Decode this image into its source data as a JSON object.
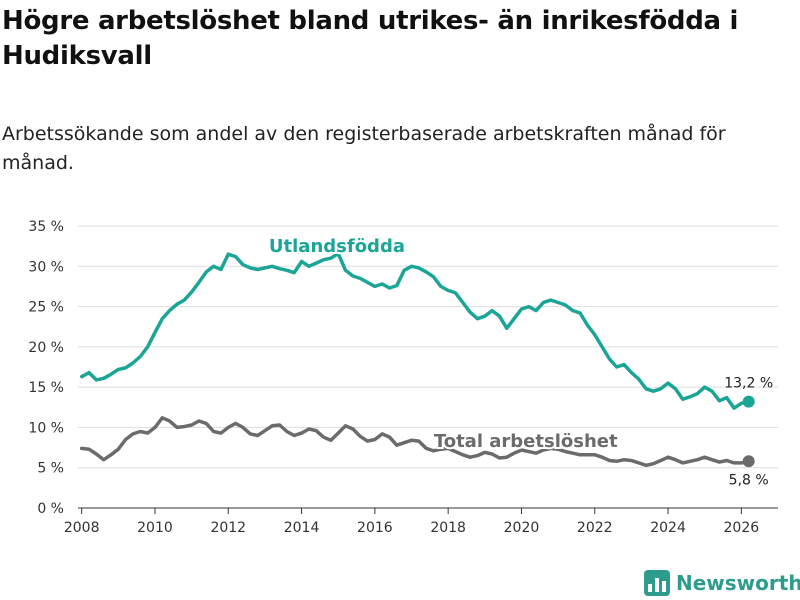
{
  "page": {
    "title": "Högre arbetslöshet bland utrikes- än inrikesfödda i Hudiksvall",
    "subtitle": "Arbetssökande som andel av den registerbaserade arbetskraften månad för månad."
  },
  "brand": {
    "name": "Newsworthy",
    "icon": "bar-chart-logo-icon",
    "color": "#2e9c8c"
  },
  "chart_data": {
    "type": "line",
    "title": "Högre arbetslöshet bland utrikes- än inrikesfödda i Hudiksvall",
    "subtitle": "Arbetssökande som andel av den registerbaserade arbetskraften månad för månad.",
    "xlabel": "",
    "ylabel": "",
    "xlim": [
      2007.9,
      2027.0
    ],
    "ylim": [
      0,
      35
    ],
    "grid": true,
    "legend": "inline labels",
    "x_ticks": [
      2008,
      2010,
      2012,
      2014,
      2016,
      2018,
      2020,
      2022,
      2024,
      2026
    ],
    "y_ticks": [
      0,
      5,
      10,
      15,
      20,
      25,
      30,
      35
    ],
    "y_tick_labels": [
      "0 %",
      "5 %",
      "10 %",
      "15 %",
      "20 %",
      "25 %",
      "30 %",
      "35 %"
    ],
    "series": [
      {
        "name": "Utlandsfödda",
        "color": "#1aa597",
        "end_label": "13,2 %",
        "points": [
          [
            2008.0,
            16.3
          ],
          [
            2008.2,
            16.8
          ],
          [
            2008.4,
            15.9
          ],
          [
            2008.6,
            16.1
          ],
          [
            2008.8,
            16.6
          ],
          [
            2009.0,
            17.2
          ],
          [
            2009.2,
            17.4
          ],
          [
            2009.4,
            18.0
          ],
          [
            2009.6,
            18.8
          ],
          [
            2009.8,
            20.0
          ],
          [
            2010.0,
            21.8
          ],
          [
            2010.2,
            23.5
          ],
          [
            2010.4,
            24.5
          ],
          [
            2010.6,
            25.3
          ],
          [
            2010.8,
            25.8
          ],
          [
            2011.0,
            26.8
          ],
          [
            2011.2,
            28.0
          ],
          [
            2011.4,
            29.3
          ],
          [
            2011.6,
            30.0
          ],
          [
            2011.8,
            29.6
          ],
          [
            2012.0,
            31.5
          ],
          [
            2012.2,
            31.2
          ],
          [
            2012.4,
            30.2
          ],
          [
            2012.6,
            29.8
          ],
          [
            2012.8,
            29.6
          ],
          [
            2013.0,
            29.8
          ],
          [
            2013.2,
            30.0
          ],
          [
            2013.4,
            29.7
          ],
          [
            2013.6,
            29.5
          ],
          [
            2013.8,
            29.2
          ],
          [
            2014.0,
            30.6
          ],
          [
            2014.2,
            30.0
          ],
          [
            2014.4,
            30.4
          ],
          [
            2014.6,
            30.8
          ],
          [
            2014.8,
            31.0
          ],
          [
            2015.0,
            31.6
          ],
          [
            2015.2,
            29.5
          ],
          [
            2015.4,
            28.8
          ],
          [
            2015.6,
            28.5
          ],
          [
            2015.8,
            28.0
          ],
          [
            2016.0,
            27.5
          ],
          [
            2016.2,
            27.8
          ],
          [
            2016.4,
            27.3
          ],
          [
            2016.6,
            27.6
          ],
          [
            2016.8,
            29.5
          ],
          [
            2017.0,
            30.0
          ],
          [
            2017.2,
            29.8
          ],
          [
            2017.4,
            29.3
          ],
          [
            2017.6,
            28.7
          ],
          [
            2017.8,
            27.5
          ],
          [
            2018.0,
            27.0
          ],
          [
            2018.2,
            26.7
          ],
          [
            2018.4,
            25.5
          ],
          [
            2018.6,
            24.3
          ],
          [
            2018.8,
            23.5
          ],
          [
            2019.0,
            23.8
          ],
          [
            2019.2,
            24.5
          ],
          [
            2019.4,
            23.8
          ],
          [
            2019.6,
            22.3
          ],
          [
            2019.8,
            23.5
          ],
          [
            2020.0,
            24.7
          ],
          [
            2020.2,
            25.0
          ],
          [
            2020.4,
            24.5
          ],
          [
            2020.6,
            25.5
          ],
          [
            2020.8,
            25.8
          ],
          [
            2021.0,
            25.5
          ],
          [
            2021.2,
            25.2
          ],
          [
            2021.4,
            24.5
          ],
          [
            2021.6,
            24.2
          ],
          [
            2021.8,
            22.7
          ],
          [
            2022.0,
            21.5
          ],
          [
            2022.2,
            20.0
          ],
          [
            2022.4,
            18.5
          ],
          [
            2022.6,
            17.5
          ],
          [
            2022.8,
            17.8
          ],
          [
            2023.0,
            16.8
          ],
          [
            2023.2,
            16.0
          ],
          [
            2023.4,
            14.8
          ],
          [
            2023.6,
            14.5
          ],
          [
            2023.8,
            14.8
          ],
          [
            2024.0,
            15.5
          ],
          [
            2024.2,
            14.8
          ],
          [
            2024.4,
            13.5
          ],
          [
            2024.6,
            13.8
          ],
          [
            2024.8,
            14.2
          ],
          [
            2025.0,
            15.0
          ],
          [
            2025.2,
            14.5
          ],
          [
            2025.4,
            13.3
          ],
          [
            2025.6,
            13.7
          ],
          [
            2025.8,
            12.4
          ],
          [
            2026.0,
            13.0
          ],
          [
            2026.2,
            13.2
          ]
        ]
      },
      {
        "name": "Total arbetslöshet",
        "color": "#6b6b6b",
        "end_label": "5,8 %",
        "points": [
          [
            2008.0,
            7.4
          ],
          [
            2008.2,
            7.3
          ],
          [
            2008.4,
            6.7
          ],
          [
            2008.6,
            6.0
          ],
          [
            2008.8,
            6.6
          ],
          [
            2009.0,
            7.3
          ],
          [
            2009.2,
            8.5
          ],
          [
            2009.4,
            9.2
          ],
          [
            2009.6,
            9.5
          ],
          [
            2009.8,
            9.3
          ],
          [
            2010.0,
            10.0
          ],
          [
            2010.2,
            11.2
          ],
          [
            2010.4,
            10.8
          ],
          [
            2010.6,
            10.0
          ],
          [
            2010.8,
            10.1
          ],
          [
            2011.0,
            10.3
          ],
          [
            2011.2,
            10.8
          ],
          [
            2011.4,
            10.5
          ],
          [
            2011.6,
            9.5
          ],
          [
            2011.8,
            9.3
          ],
          [
            2012.0,
            10.0
          ],
          [
            2012.2,
            10.5
          ],
          [
            2012.4,
            10.0
          ],
          [
            2012.6,
            9.2
          ],
          [
            2012.8,
            9.0
          ],
          [
            2013.0,
            9.6
          ],
          [
            2013.2,
            10.2
          ],
          [
            2013.4,
            10.3
          ],
          [
            2013.6,
            9.5
          ],
          [
            2013.8,
            9.0
          ],
          [
            2014.0,
            9.3
          ],
          [
            2014.2,
            9.8
          ],
          [
            2014.4,
            9.6
          ],
          [
            2014.6,
            8.8
          ],
          [
            2014.8,
            8.4
          ],
          [
            2015.0,
            9.3
          ],
          [
            2015.2,
            10.2
          ],
          [
            2015.4,
            9.8
          ],
          [
            2015.6,
            8.9
          ],
          [
            2015.8,
            8.3
          ],
          [
            2016.0,
            8.5
          ],
          [
            2016.2,
            9.2
          ],
          [
            2016.4,
            8.8
          ],
          [
            2016.6,
            7.8
          ],
          [
            2016.8,
            8.1
          ],
          [
            2017.0,
            8.4
          ],
          [
            2017.2,
            8.3
          ],
          [
            2017.4,
            7.4
          ],
          [
            2017.6,
            7.1
          ],
          [
            2017.8,
            7.3
          ],
          [
            2018.0,
            7.4
          ],
          [
            2018.2,
            7.0
          ],
          [
            2018.4,
            6.6
          ],
          [
            2018.6,
            6.3
          ],
          [
            2018.8,
            6.5
          ],
          [
            2019.0,
            6.9
          ],
          [
            2019.2,
            6.7
          ],
          [
            2019.4,
            6.2
          ],
          [
            2019.6,
            6.3
          ],
          [
            2019.8,
            6.8
          ],
          [
            2020.0,
            7.2
          ],
          [
            2020.2,
            7.0
          ],
          [
            2020.4,
            6.8
          ],
          [
            2020.6,
            7.2
          ],
          [
            2020.8,
            7.4
          ],
          [
            2021.0,
            7.3
          ],
          [
            2021.2,
            7.0
          ],
          [
            2021.4,
            6.8
          ],
          [
            2021.6,
            6.6
          ],
          [
            2021.8,
            6.6
          ],
          [
            2022.0,
            6.6
          ],
          [
            2022.2,
            6.3
          ],
          [
            2022.4,
            5.9
          ],
          [
            2022.6,
            5.8
          ],
          [
            2022.8,
            6.0
          ],
          [
            2023.0,
            5.9
          ],
          [
            2023.2,
            5.6
          ],
          [
            2023.4,
            5.3
          ],
          [
            2023.6,
            5.5
          ],
          [
            2023.8,
            5.9
          ],
          [
            2024.0,
            6.3
          ],
          [
            2024.2,
            6.0
          ],
          [
            2024.4,
            5.6
          ],
          [
            2024.6,
            5.8
          ],
          [
            2024.8,
            6.0
          ],
          [
            2025.0,
            6.3
          ],
          [
            2025.2,
            6.0
          ],
          [
            2025.4,
            5.7
          ],
          [
            2025.6,
            5.9
          ],
          [
            2025.8,
            5.6
          ],
          [
            2026.0,
            5.6
          ],
          [
            2026.2,
            5.8
          ]
        ]
      }
    ]
  }
}
